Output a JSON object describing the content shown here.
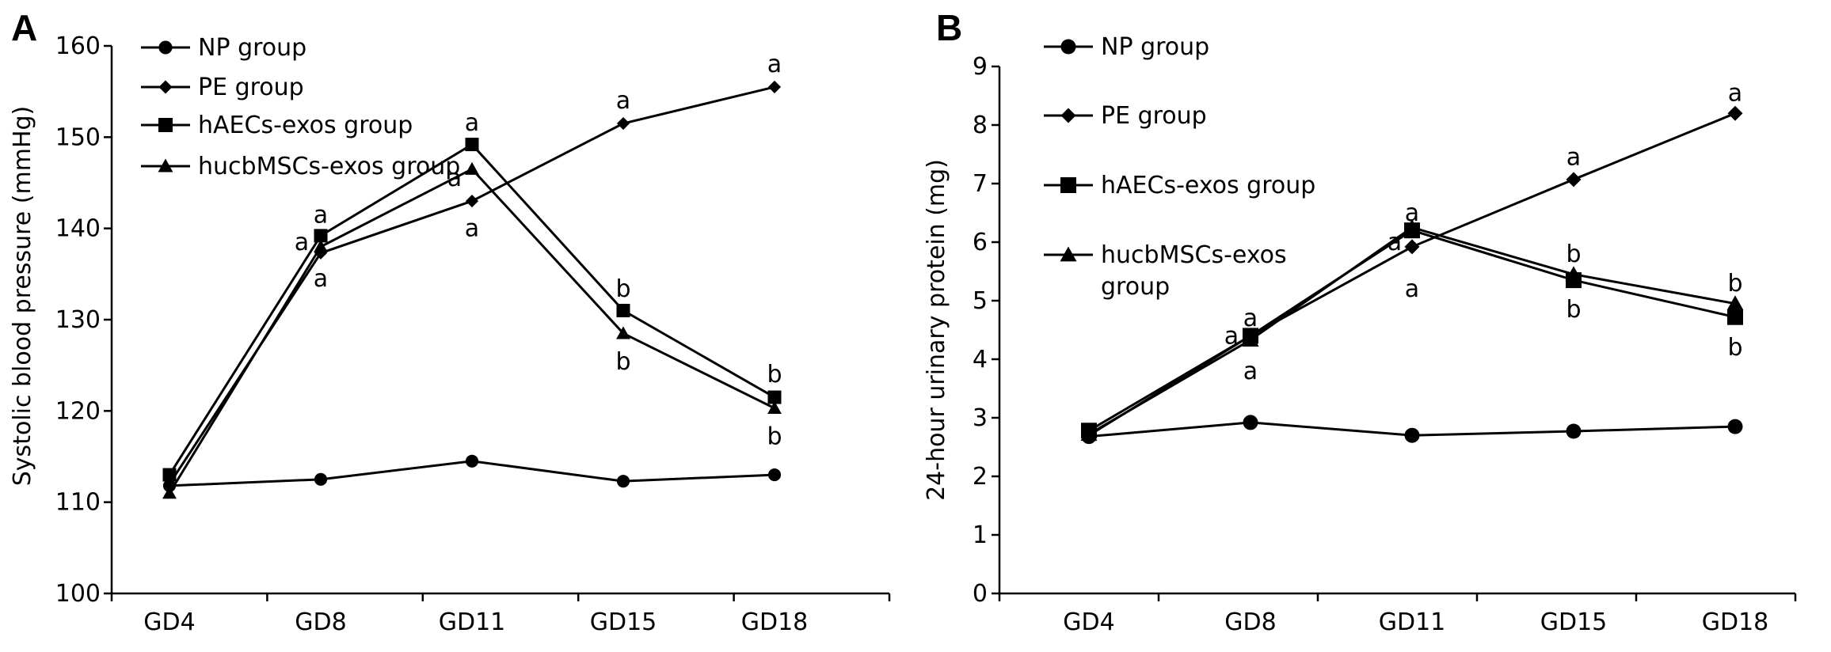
{
  "chart_data": [
    {
      "type": "line",
      "panel_label": "A",
      "title": "",
      "xlabel": "",
      "ylabel": "Systolic blood pressure (mmHg)",
      "categories": [
        "GD4",
        "GD8",
        "GD11",
        "GD15",
        "GD18"
      ],
      "ylim": [
        100,
        160
      ],
      "yticks": [
        100,
        110,
        120,
        130,
        140,
        150,
        160
      ],
      "grid": false,
      "legend": "top-left",
      "series": [
        {
          "name": "NP group",
          "marker": "circle",
          "values": [
            111.8,
            112.5,
            114.5,
            112.3,
            113.0
          ]
        },
        {
          "name": "PE group",
          "marker": "diamond",
          "values": [
            112.0,
            137.3,
            143.0,
            151.5,
            155.5
          ]
        },
        {
          "name": "hAECs-exos group",
          "marker": "square",
          "values": [
            113.0,
            139.2,
            149.2,
            131.0,
            121.5
          ]
        },
        {
          "name": "hucbMSCs-exos group",
          "marker": "triangle",
          "values": [
            111.0,
            138.0,
            146.5,
            128.5,
            120.3
          ]
        }
      ],
      "annotations": [
        {
          "text": "a",
          "category": "GD8",
          "value": 141.5
        },
        {
          "text": "a",
          "category": "GD8",
          "value": 138.5
        },
        {
          "text": "a",
          "category": "GD8",
          "value": 134.5
        },
        {
          "text": "a",
          "category": "GD11",
          "value": 151.6
        },
        {
          "text": "a",
          "category": "GD11",
          "value": 145.5
        },
        {
          "text": "a",
          "category": "GD11",
          "value": 140.0
        },
        {
          "text": "a",
          "category": "GD15",
          "value": 154.0
        },
        {
          "text": "b",
          "category": "GD15",
          "value": 133.4
        },
        {
          "text": "b",
          "category": "GD15",
          "value": 125.4
        },
        {
          "text": "a",
          "category": "GD18",
          "value": 158.0
        },
        {
          "text": "b",
          "category": "GD18",
          "value": 124.0
        },
        {
          "text": "b",
          "category": "GD18",
          "value": 117.2
        }
      ]
    },
    {
      "type": "line",
      "panel_label": "B",
      "title": "",
      "xlabel": "",
      "ylabel": "24-hour urinary protein (mg)",
      "categories": [
        "GD4",
        "GD8",
        "GD11",
        "GD15",
        "GD18"
      ],
      "ylim": [
        0,
        9
      ],
      "yticks": [
        0,
        1,
        2,
        3,
        4,
        5,
        6,
        7,
        8,
        9
      ],
      "grid": false,
      "legend": "top-left",
      "series": [
        {
          "name": "NP group",
          "marker": "circle",
          "values": [
            2.68,
            2.92,
            2.7,
            2.77,
            2.85
          ]
        },
        {
          "name": "PE group",
          "marker": "diamond",
          "values": [
            2.7,
            4.4,
            5.92,
            7.07,
            8.2
          ]
        },
        {
          "name": "hAECs-exos group",
          "marker": "square",
          "values": [
            2.78,
            4.4,
            6.2,
            5.35,
            4.72
          ]
        },
        {
          "name": "hucbMSCs-exos group",
          "marker": "triangle",
          "values": [
            2.72,
            4.33,
            6.25,
            5.45,
            4.95
          ]
        }
      ],
      "annotations": [
        {
          "text": "a",
          "category": "GD8",
          "value": 4.7
        },
        {
          "text": "a",
          "category": "GD8",
          "value": 4.4
        },
        {
          "text": "a",
          "category": "GD8",
          "value": 3.8
        },
        {
          "text": "a",
          "category": "GD11",
          "value": 6.5
        },
        {
          "text": "a",
          "category": "GD11",
          "value": 6.0
        },
        {
          "text": "a",
          "category": "GD11",
          "value": 5.2
        },
        {
          "text": "a",
          "category": "GD15",
          "value": 7.45
        },
        {
          "text": "b",
          "category": "GD15",
          "value": 5.8
        },
        {
          "text": "b",
          "category": "GD15",
          "value": 4.85
        },
        {
          "text": "a",
          "category": "GD18",
          "value": 8.55
        },
        {
          "text": "b",
          "category": "GD18",
          "value": 5.3
        },
        {
          "text": "b",
          "category": "GD18",
          "value": 4.2
        }
      ]
    }
  ]
}
